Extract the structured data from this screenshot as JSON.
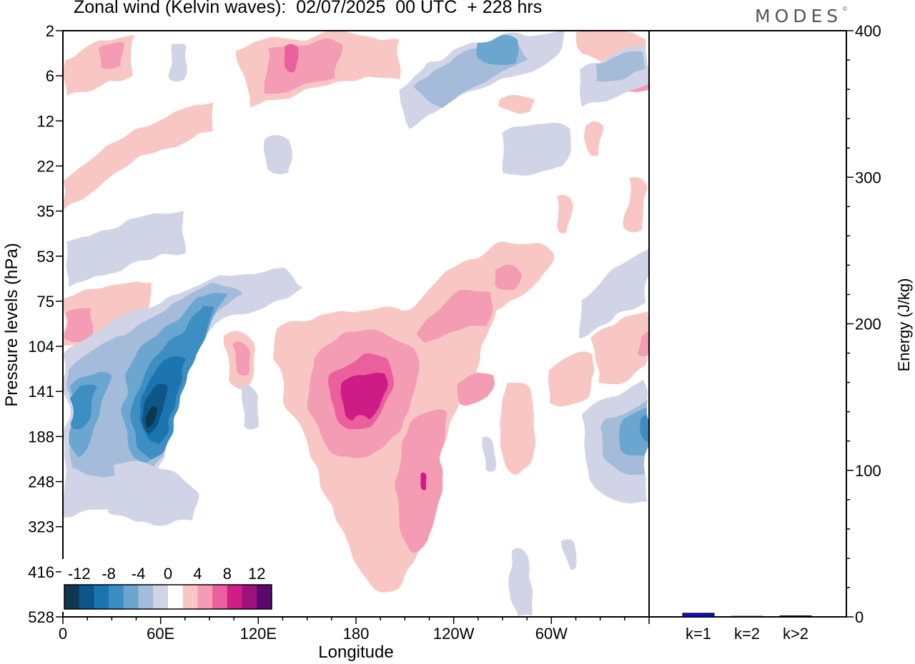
{
  "header": {
    "title": "Zonal wind (Kelvin waves):  02/07/2025  00 UTC  + 228 hrs",
    "brand": "MODES"
  },
  "chart_data": [
    {
      "type": "heatmap",
      "title": "Zonal wind (Kelvin waves):  02/07/2025  00 UTC  + 228 hrs",
      "xlabel": "Longitude",
      "ylabel": "Pressure levels (hPa)",
      "x_ticks": [
        "0",
        "60E",
        "120E",
        "180",
        "120W",
        "60W"
      ],
      "y_ticks": [
        "2",
        "6",
        "12",
        "22",
        "35",
        "53",
        "75",
        "104",
        "141",
        "188",
        "248",
        "323",
        "416",
        "528"
      ],
      "colorbar": {
        "labels": [
          "-12",
          "-8",
          "-4",
          "0",
          "4",
          "8",
          "12"
        ],
        "colors": [
          "#0e3750",
          "#0c5787",
          "#1a74af",
          "#3c8ec2",
          "#6ba6cf",
          "#a4bcd9",
          "#d1d4e6",
          "#ffffff",
          "#f8c7c4",
          "#f39cb4",
          "#eb5f9c",
          "#ce1f86",
          "#9c127a",
          "#5a0a6a"
        ]
      },
      "features": [
        {
          "sign": "negative",
          "lon": 40,
          "p": 141,
          "max_abs": 12
        },
        {
          "sign": "negative",
          "lon": 8,
          "p": 141,
          "max_abs": 8
        },
        {
          "sign": "positive",
          "lon": 140,
          "p": 141,
          "max_abs": 9
        },
        {
          "sign": "negative",
          "lon": 230,
          "p": 6,
          "max_abs": 6
        },
        {
          "sign": "positive",
          "lon": 100,
          "p": 4,
          "max_abs": 6
        },
        {
          "sign": "negative",
          "lon": 358,
          "p": 188,
          "max_abs": 8
        },
        {
          "sign": "positive",
          "lon": 220,
          "p": 75,
          "max_abs": 4
        }
      ]
    },
    {
      "type": "bar",
      "categories": [
        "k=1",
        "k=2",
        "k>2"
      ],
      "values": [
        2.5,
        0.4,
        0.7
      ],
      "ylabel": "Energy (J/kg)",
      "ylim": [
        0,
        400
      ],
      "y_ticks": [
        "0",
        "100",
        "200",
        "300",
        "400"
      ],
      "bar_color": "#1010c8"
    }
  ]
}
